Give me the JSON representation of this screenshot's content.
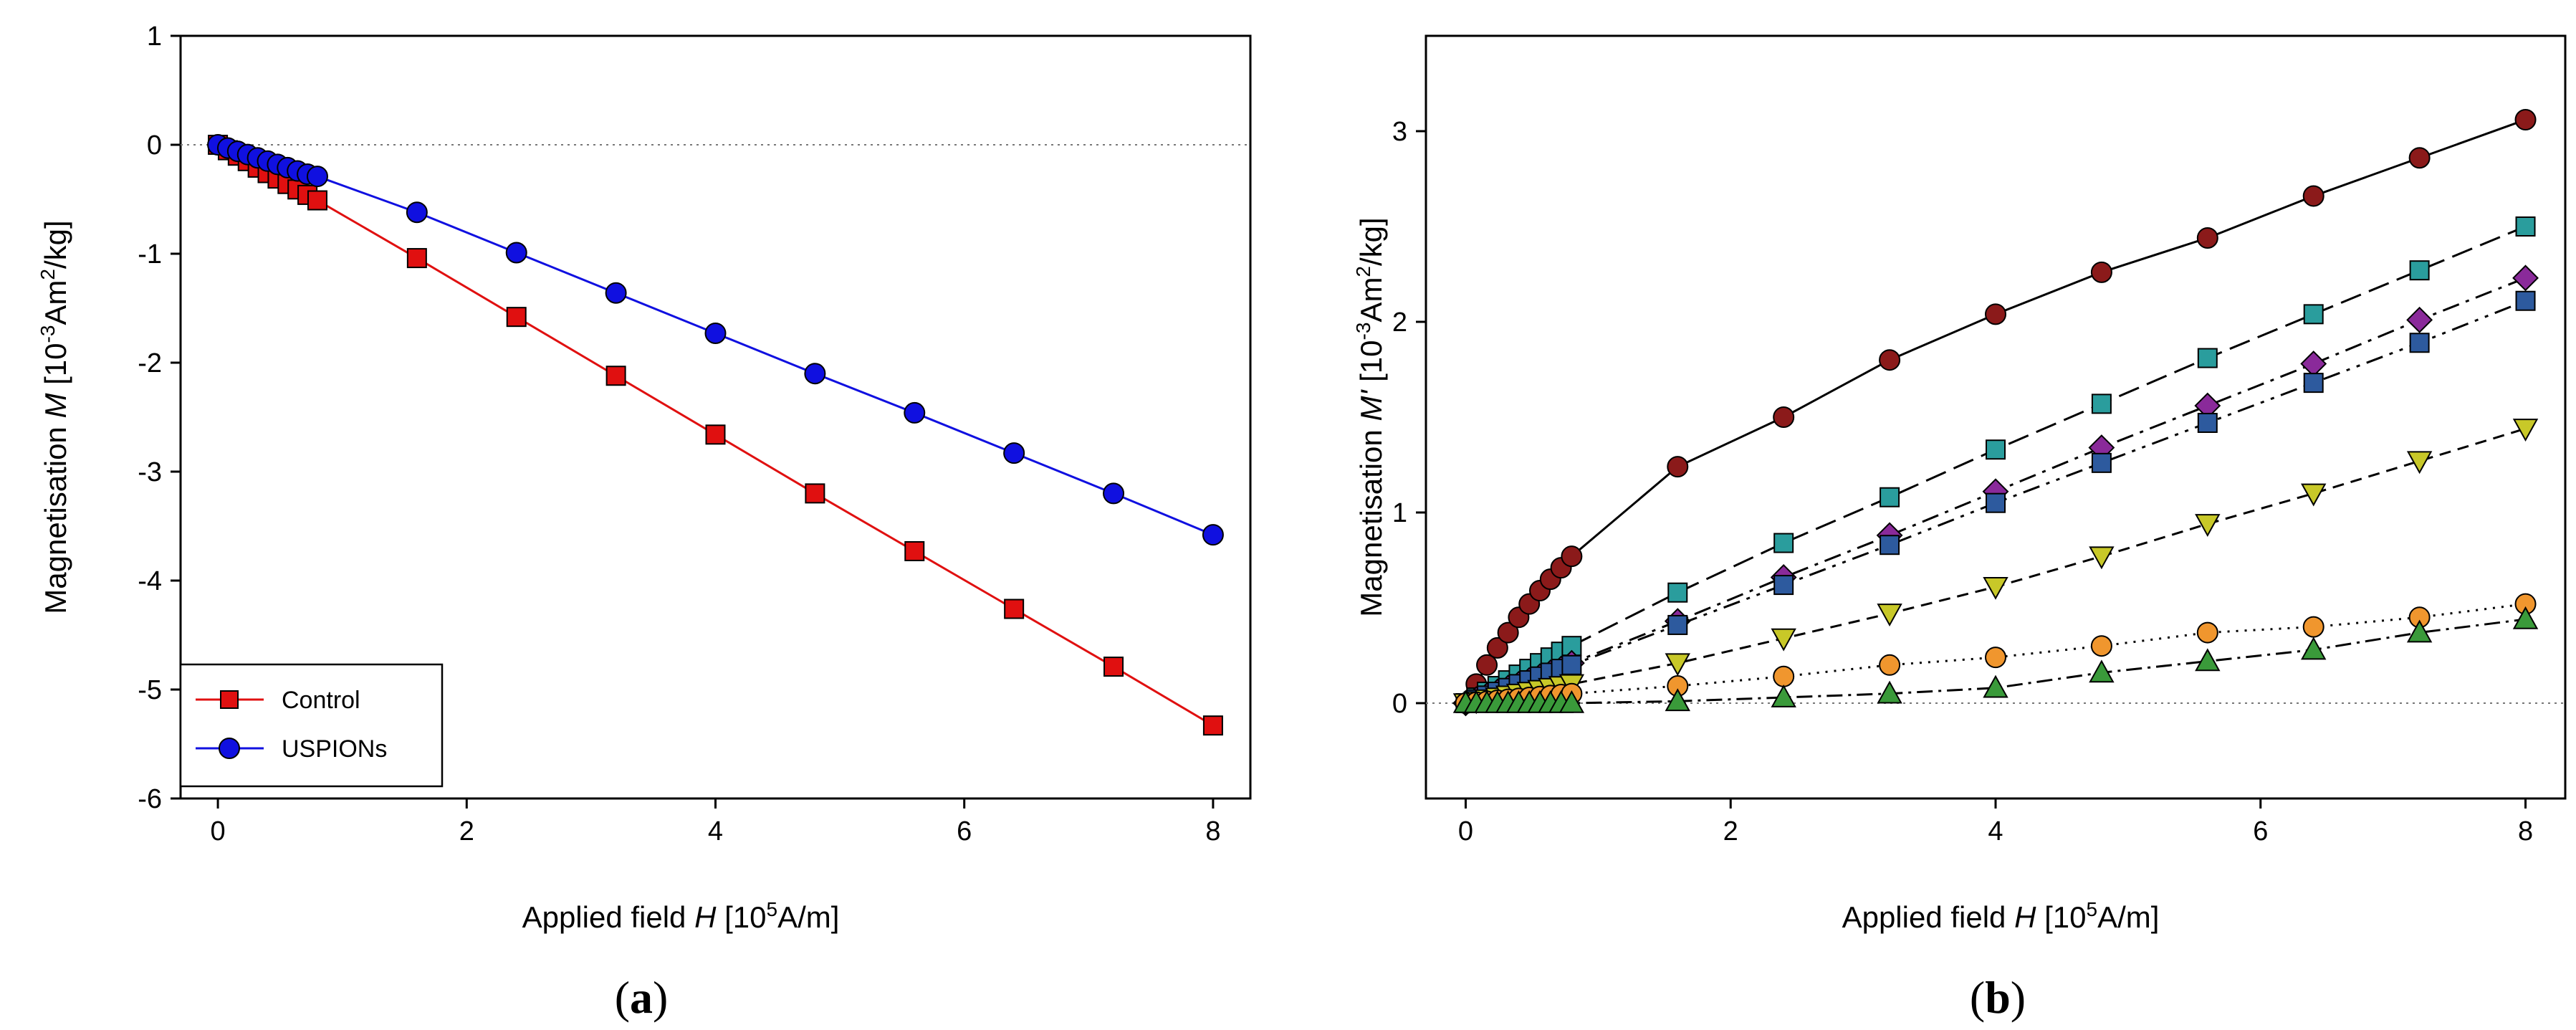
{
  "chart_data": [
    {
      "panel": "a",
      "panel_label": "a",
      "type": "line",
      "ylabel_parts": {
        "pre": "Magnetisation ",
        "sym": "M",
        "pre2": " [10",
        "exp": "-3",
        "post": "Am",
        "exp2": "2",
        "post2": "/kg]"
      },
      "xlabel_parts": {
        "pre": "Applied field ",
        "sym": "H",
        "pre2": " [10",
        "exp": "5",
        "post": "A/m]"
      },
      "xlim": [
        -0.3,
        8.3
      ],
      "ylim": [
        -6,
        1
      ],
      "xticks": [
        "0",
        "2",
        "4",
        "6",
        "8"
      ],
      "yticks": [
        "1",
        "0",
        "-1",
        "-2",
        "-3",
        "-4",
        "-5",
        "-6"
      ],
      "legend_position": "bottom-left",
      "series": [
        {
          "name": "Control",
          "color": "#e01010",
          "marker": "square",
          "x": [
            0,
            0.08,
            0.16,
            0.24,
            0.32,
            0.4,
            0.48,
            0.56,
            0.64,
            0.72,
            0.8,
            1.6,
            2.4,
            3.2,
            4.0,
            4.8,
            5.6,
            6.4,
            7.2,
            8.0
          ],
          "y": [
            0,
            -0.05,
            -0.1,
            -0.15,
            -0.21,
            -0.26,
            -0.31,
            -0.36,
            -0.41,
            -0.46,
            -0.51,
            -1.04,
            -1.58,
            -2.12,
            -2.66,
            -3.2,
            -3.73,
            -4.26,
            -4.79,
            -5.33
          ]
        },
        {
          "name": "USPIONs",
          "color": "#1010e0",
          "marker": "circle",
          "x": [
            0,
            0.08,
            0.16,
            0.24,
            0.32,
            0.4,
            0.48,
            0.56,
            0.64,
            0.72,
            0.8,
            1.6,
            2.4,
            3.2,
            4.0,
            4.8,
            5.6,
            6.4,
            7.2,
            8.0
          ],
          "y": [
            0,
            -0.03,
            -0.06,
            -0.09,
            -0.12,
            -0.15,
            -0.18,
            -0.21,
            -0.24,
            -0.27,
            -0.29,
            -0.62,
            -0.99,
            -1.36,
            -1.73,
            -2.1,
            -2.46,
            -2.83,
            -3.2,
            -3.58
          ]
        }
      ]
    },
    {
      "panel": "b",
      "panel_label": "b",
      "type": "line",
      "ylabel_parts": {
        "pre": "Magnetisation ",
        "sym": "M'",
        "pre2": " [10",
        "exp": "-3",
        "post": "Am",
        "exp2": "2",
        "post2": "/kg]"
      },
      "xlabel_parts": {
        "pre": "Applied field ",
        "sym": "H",
        "pre2": " [10",
        "exp": "5",
        "post": "A/m]"
      },
      "xlim": [
        -0.3,
        8.3
      ],
      "ylim": [
        -0.5,
        3.5
      ],
      "xticks": [
        "0",
        "2",
        "4",
        "6",
        "8"
      ],
      "yticks": [
        "3",
        "2",
        "1",
        "0"
      ],
      "series": [
        {
          "name": "",
          "color": "#8b1a1a",
          "marker": "circle",
          "dash": "",
          "x": [
            0,
            0.08,
            0.16,
            0.24,
            0.32,
            0.4,
            0.48,
            0.56,
            0.64,
            0.72,
            0.8,
            1.6,
            2.4,
            3.2,
            4.0,
            4.8,
            5.6,
            6.4,
            7.2,
            8.0
          ],
          "y": [
            0,
            0.1,
            0.2,
            0.29,
            0.37,
            0.45,
            0.52,
            0.59,
            0.65,
            0.71,
            0.77,
            1.24,
            1.5,
            1.8,
            2.04,
            2.26,
            2.44,
            2.66,
            2.86,
            3.06
          ]
        },
        {
          "name": "",
          "color": "#2a9d9d",
          "marker": "square",
          "dash": "30,12",
          "x": [
            0,
            0.08,
            0.16,
            0.24,
            0.32,
            0.4,
            0.48,
            0.56,
            0.64,
            0.72,
            0.8,
            1.6,
            2.4,
            3.2,
            4.0,
            4.8,
            5.6,
            6.4,
            7.2,
            8.0
          ],
          "y": [
            0,
            0.03,
            0.06,
            0.09,
            0.12,
            0.15,
            0.18,
            0.21,
            0.24,
            0.27,
            0.3,
            0.58,
            0.84,
            1.08,
            1.33,
            1.57,
            1.81,
            2.04,
            2.27,
            2.5
          ]
        },
        {
          "name": "",
          "color": "#8a2a9a",
          "marker": "diamond",
          "dash": "24,10,5,10",
          "x": [
            0,
            0.08,
            0.16,
            0.24,
            0.32,
            0.4,
            0.48,
            0.56,
            0.64,
            0.72,
            0.8,
            1.6,
            2.4,
            3.2,
            4.0,
            4.8,
            5.6,
            6.4,
            7.2,
            8.0
          ],
          "y": [
            0,
            0.02,
            0.04,
            0.06,
            0.08,
            0.1,
            0.12,
            0.14,
            0.16,
            0.18,
            0.21,
            0.43,
            0.66,
            0.88,
            1.11,
            1.34,
            1.56,
            1.78,
            2.01,
            2.23
          ]
        },
        {
          "name": "",
          "color": "#2d5a9e",
          "marker": "square",
          "dash": "24,10,5,10,5,10",
          "x": [
            0,
            0.08,
            0.16,
            0.24,
            0.32,
            0.4,
            0.48,
            0.56,
            0.64,
            0.72,
            0.8,
            1.6,
            2.4,
            3.2,
            4.0,
            4.8,
            5.6,
            6.4,
            7.2,
            8.0
          ],
          "y": [
            0,
            0.02,
            0.04,
            0.06,
            0.08,
            0.1,
            0.12,
            0.14,
            0.16,
            0.18,
            0.2,
            0.41,
            0.62,
            0.83,
            1.05,
            1.26,
            1.47,
            1.68,
            1.89,
            2.11
          ]
        },
        {
          "name": "",
          "color": "#c8c828",
          "marker": "triangle-down",
          "dash": "16,10",
          "x": [
            0,
            0.08,
            0.16,
            0.24,
            0.32,
            0.4,
            0.48,
            0.56,
            0.64,
            0.72,
            0.8,
            1.6,
            2.4,
            3.2,
            4.0,
            4.8,
            5.6,
            6.4,
            7.2,
            8.0
          ],
          "y": [
            0,
            0.01,
            0.02,
            0.03,
            0.04,
            0.05,
            0.06,
            0.07,
            0.08,
            0.09,
            0.1,
            0.21,
            0.34,
            0.47,
            0.61,
            0.77,
            0.94,
            1.1,
            1.27,
            1.44
          ]
        },
        {
          "name": "",
          "color": "#f0962e",
          "marker": "circle",
          "dash": "3,9",
          "x": [
            0,
            0.08,
            0.16,
            0.24,
            0.32,
            0.4,
            0.48,
            0.56,
            0.64,
            0.72,
            0.8,
            1.6,
            2.4,
            3.2,
            4.0,
            4.8,
            5.6,
            6.4,
            7.2,
            8.0
          ],
          "y": [
            0,
            0.005,
            0.01,
            0.015,
            0.02,
            0.025,
            0.03,
            0.035,
            0.04,
            0.045,
            0.05,
            0.09,
            0.14,
            0.2,
            0.24,
            0.3,
            0.37,
            0.4,
            0.45,
            0.52
          ]
        },
        {
          "name": "",
          "color": "#3a9a3a",
          "marker": "triangle-up",
          "dash": "22,8,4,8",
          "x": [
            0,
            0.08,
            0.16,
            0.24,
            0.32,
            0.4,
            0.48,
            0.56,
            0.64,
            0.72,
            0.8,
            1.6,
            2.4,
            3.2,
            4.0,
            4.8,
            5.6,
            6.4,
            7.2,
            8.0
          ],
          "y": [
            0,
            0,
            0,
            0,
            0,
            0,
            0,
            0,
            0,
            0,
            0,
            0.01,
            0.03,
            0.05,
            0.08,
            0.16,
            0.22,
            0.28,
            0.37,
            0.44
          ]
        }
      ]
    }
  ]
}
